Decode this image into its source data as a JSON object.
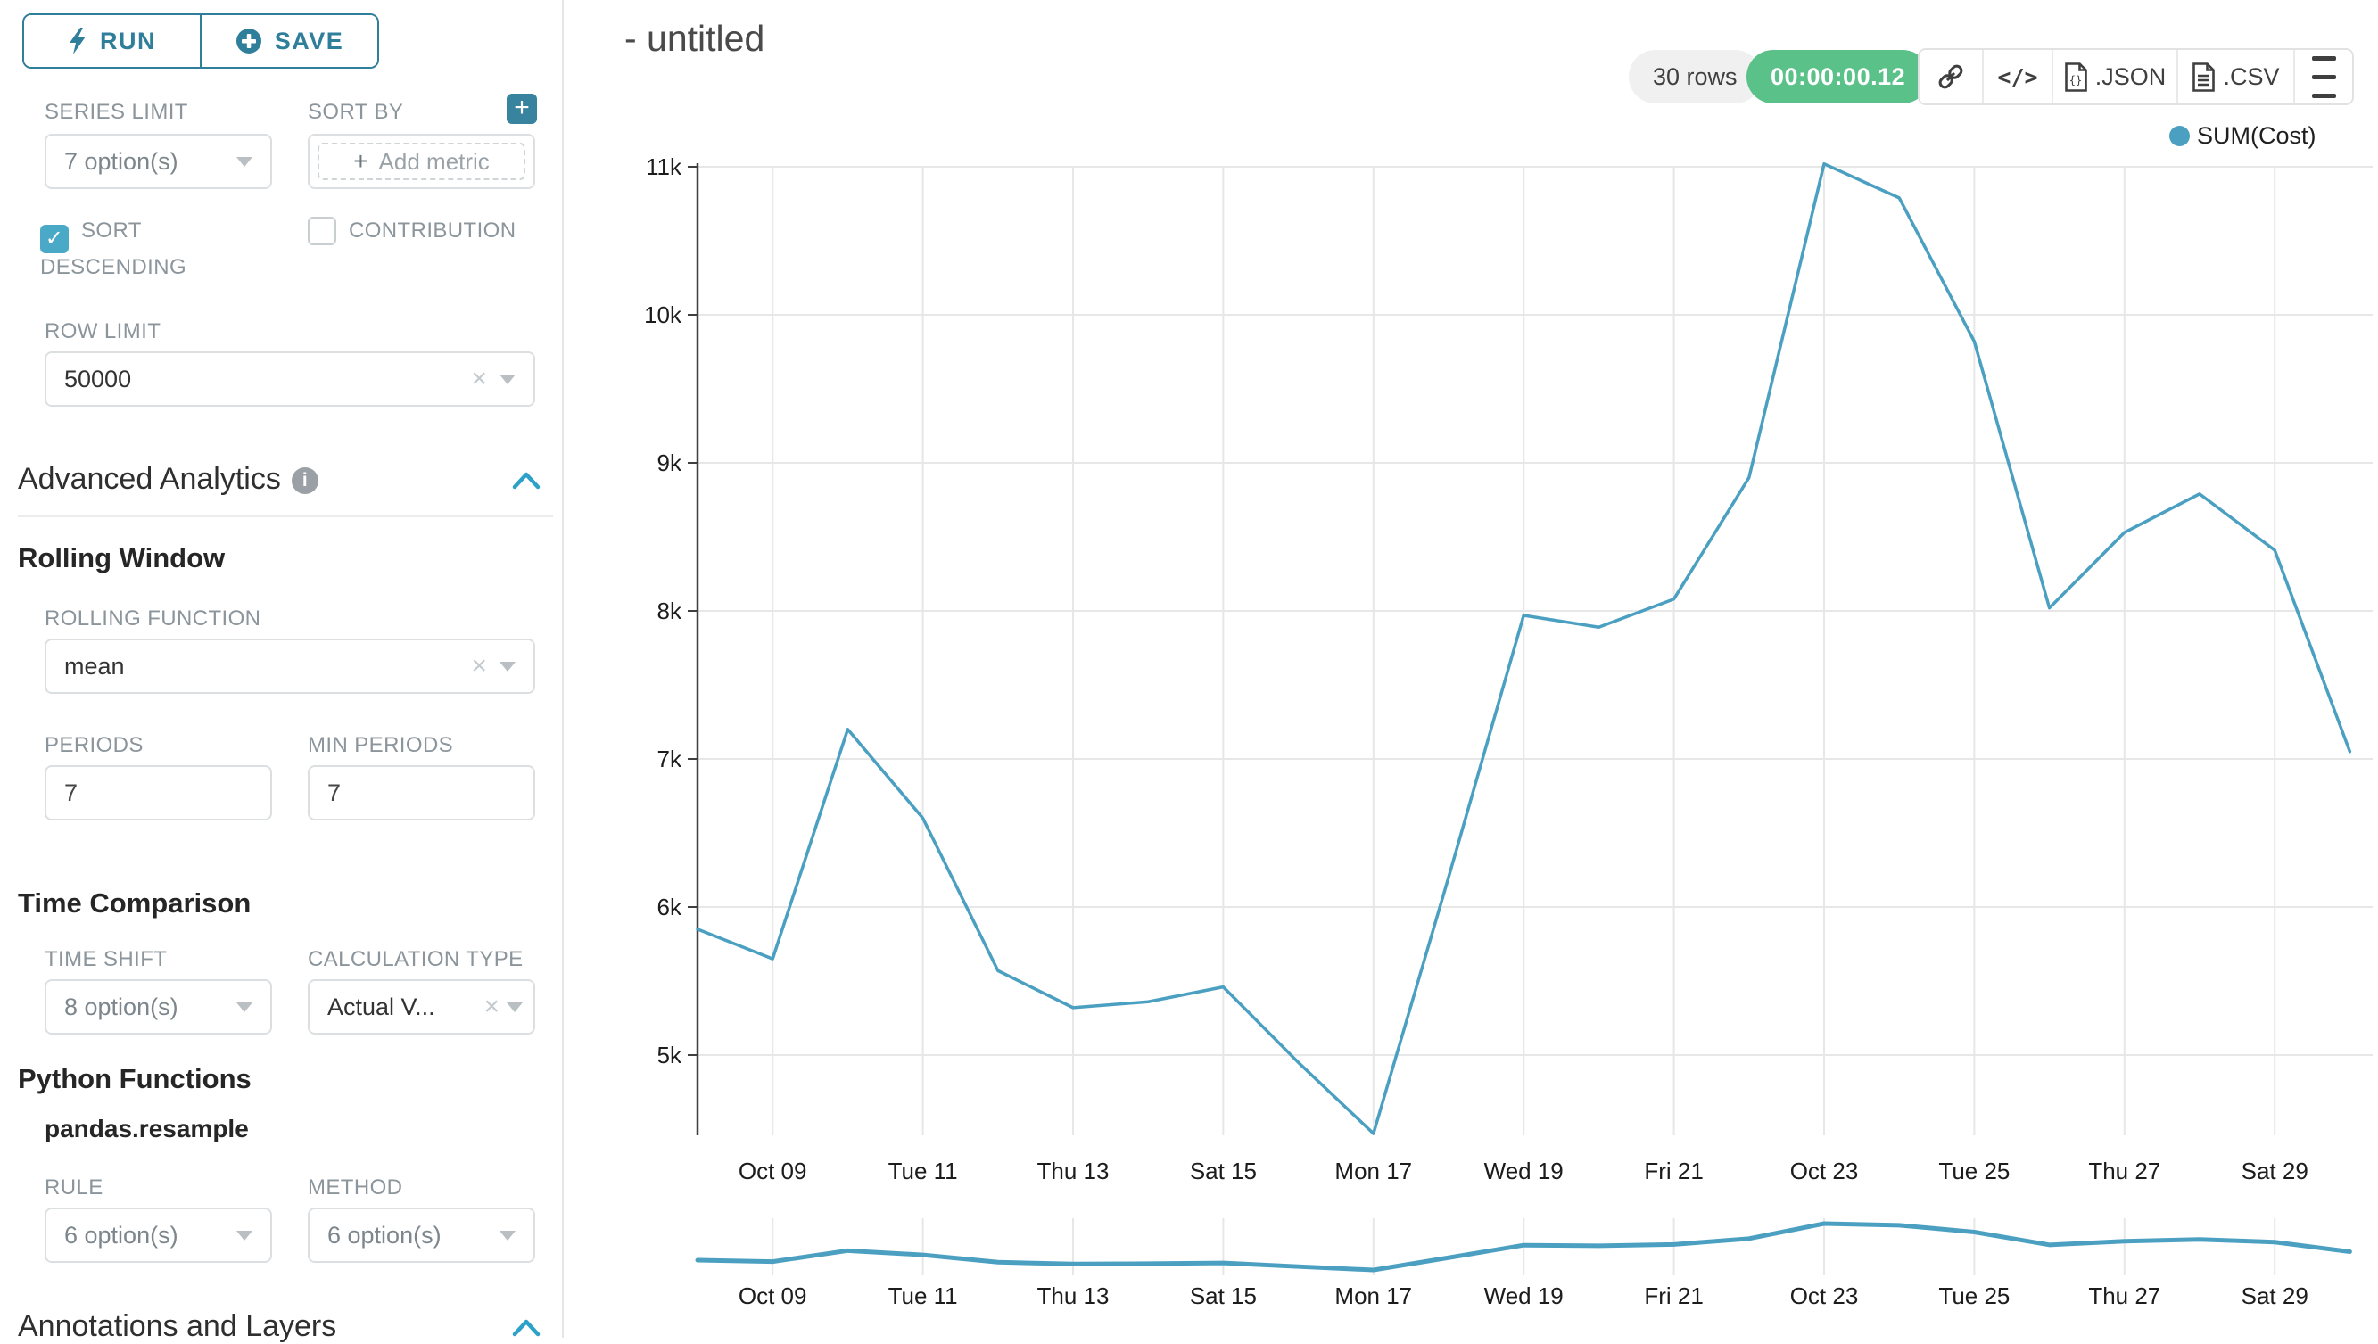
{
  "sidebar": {
    "run_button": {
      "label": "RUN"
    },
    "save_button": {
      "label": "SAVE"
    },
    "series_limit": {
      "label": "SERIES LIMIT",
      "value": "7 option(s)"
    },
    "sort_by": {
      "label": "SORT BY",
      "plus_button": "+",
      "add_metric_placeholder": "Add metric"
    },
    "sort_descending": {
      "label": "SORT DESCENDING",
      "checked": true,
      "check_glyph": "✓"
    },
    "contribution": {
      "label": "CONTRIBUTION",
      "checked": false
    },
    "row_limit": {
      "label": "ROW LIMIT",
      "value": "50000"
    },
    "advanced_analytics": {
      "title": "Advanced Analytics",
      "info_glyph": "i"
    },
    "rolling_window": {
      "title": "Rolling Window",
      "rolling_function": {
        "label": "ROLLING FUNCTION",
        "value": "mean"
      },
      "periods": {
        "label": "PERIODS",
        "value": "7"
      },
      "min_periods": {
        "label": "MIN PERIODS",
        "value": "7"
      }
    },
    "time_comparison": {
      "title": "Time Comparison",
      "time_shift": {
        "label": "TIME SHIFT",
        "value": "8 option(s)"
      },
      "calculation_type": {
        "label": "CALCULATION TYPE",
        "value": "Actual V..."
      }
    },
    "python_functions": {
      "title": "Python Functions",
      "subtitle": "pandas.resample",
      "rule": {
        "label": "RULE",
        "value": "6 option(s)"
      },
      "method": {
        "label": "METHOD",
        "value": "6 option(s)"
      }
    },
    "annotations": {
      "title": "Annotations and Layers"
    }
  },
  "header": {
    "title": "- untitled",
    "rows_badge": "30 rows",
    "timer_badge": "00:00:00.12",
    "export_json_label": ".JSON",
    "export_csv_label": ".CSV",
    "json_icon_glyph": "{}"
  },
  "colors": {
    "accent_teal": "#2f7f9b",
    "plus_button_teal": "#38839e",
    "checkbox_teal": "#4BA9C8",
    "success_green": "#5ac189",
    "line_blue": "#4BA0C2"
  },
  "chart_data": {
    "type": "line",
    "title": "",
    "legend": [
      "SUM(Cost)"
    ],
    "legend_position": "top-right",
    "grid": true,
    "x": [
      "Oct 08",
      "Oct 09",
      "Oct 10",
      "Oct 11",
      "Oct 12",
      "Oct 13",
      "Oct 14",
      "Oct 15",
      "Oct 16",
      "Oct 17",
      "Oct 18",
      "Oct 19",
      "Oct 20",
      "Oct 21",
      "Oct 22",
      "Oct 23",
      "Oct 24",
      "Oct 25",
      "Oct 26",
      "Oct 27",
      "Oct 28",
      "Oct 29",
      "Oct 30"
    ],
    "series": [
      {
        "name": "SUM(Cost)",
        "color": "#4BA0C2",
        "values": [
          5850,
          5650,
          7200,
          6600,
          5570,
          5320,
          5360,
          5460,
          4950,
          4470,
          6200,
          7970,
          7890,
          8080,
          8900,
          11020,
          10790,
          9820,
          8020,
          8530,
          8790,
          8410,
          7050
        ]
      }
    ],
    "x_tick_labels": [
      "Oct 09",
      "Tue 11",
      "Thu 13",
      "Sat 15",
      "Mon 17",
      "Wed 19",
      "Fri 21",
      "Oct 23",
      "Tue 25",
      "Thu 27",
      "Sat 29"
    ],
    "y_tick_labels": [
      "5k",
      "6k",
      "7k",
      "8k",
      "9k",
      "10k",
      "11k"
    ],
    "y_tick_values": [
      5000,
      6000,
      7000,
      8000,
      9000,
      10000,
      11000
    ],
    "ylim": [
      4460,
      11080
    ],
    "has_brush_preview_chart": true
  }
}
